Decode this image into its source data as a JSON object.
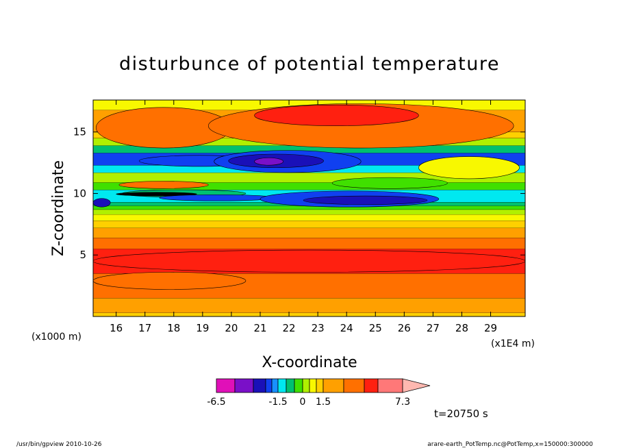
{
  "chart_data": {
    "type": "heatmap",
    "title": "disturbunce of potential temperature",
    "xlabel": "X-coordinate",
    "ylabel": "Z-coordinate",
    "xunit_left": "(x1000 m)",
    "xunit_right": "(x1E4 m)",
    "xlim": [
      15.2,
      30.2
    ],
    "ylim": [
      0,
      17.6
    ],
    "xticks": [
      "16",
      "17",
      "18",
      "19",
      "20",
      "21",
      "22",
      "23",
      "24",
      "25",
      "26",
      "27",
      "28",
      "29"
    ],
    "xtick_values": [
      16,
      17,
      18,
      19,
      20,
      21,
      22,
      23,
      24,
      25,
      26,
      27,
      28,
      29
    ],
    "yticks": [
      "5",
      "10",
      "15"
    ],
    "ytick_values": [
      5,
      10,
      15
    ],
    "legend_labels": [
      "-6.5",
      "-1.5",
      "0",
      "1.5",
      "7.3"
    ],
    "colorbar": [
      {
        "lo": -6.5,
        "hi": -5.0,
        "color": "#e010b8"
      },
      {
        "lo": -5.0,
        "hi": -3.5,
        "color": "#7a10c8"
      },
      {
        "lo": -3.5,
        "hi": -2.5,
        "color": "#1a10b8"
      },
      {
        "lo": -2.5,
        "hi": -2.0,
        "color": "#1040f0"
      },
      {
        "lo": -2.0,
        "hi": -1.5,
        "color": "#1890ff"
      },
      {
        "lo": -1.5,
        "hi": -1.0,
        "color": "#00e8f0"
      },
      {
        "lo": -1.0,
        "hi": -0.5,
        "color": "#00c070"
      },
      {
        "lo": -0.5,
        "hi": 0.0,
        "color": "#40e000"
      },
      {
        "lo": 0.0,
        "hi": 0.5,
        "color": "#b0f000"
      },
      {
        "lo": 0.5,
        "hi": 1.0,
        "color": "#f8f800"
      },
      {
        "lo": 1.0,
        "hi": 1.5,
        "color": "#ffd000"
      },
      {
        "lo": 1.5,
        "hi": 3.0,
        "color": "#ffa000"
      },
      {
        "lo": 3.0,
        "hi": 4.5,
        "color": "#ff7000"
      },
      {
        "lo": 4.5,
        "hi": 5.5,
        "color": "#ff2010"
      },
      {
        "lo": 5.5,
        "hi": 7.3,
        "color": "#ff7878"
      },
      {
        "lo": 7.3,
        "hi": null,
        "color": "#ffb8b0"
      }
    ],
    "bands": [
      {
        "z": [
          0.0,
          0.3
        ],
        "color": "#ffd000"
      },
      {
        "z": [
          0.3,
          1.5
        ],
        "color": "#ffa000"
      },
      {
        "z": [
          1.5,
          3.5
        ],
        "color": "#ff7000"
      },
      {
        "z": [
          3.5,
          5.5
        ],
        "color": "#ff2010"
      },
      {
        "z": [
          5.5,
          6.4
        ],
        "color": "#ff7000"
      },
      {
        "z": [
          6.4,
          7.2
        ],
        "color": "#ffa000"
      },
      {
        "z": [
          7.2,
          7.8
        ],
        "color": "#ffd000"
      },
      {
        "z": [
          7.8,
          8.3
        ],
        "color": "#f8f800"
      },
      {
        "z": [
          8.3,
          8.7
        ],
        "color": "#b0f000"
      },
      {
        "z": [
          8.7,
          9.0
        ],
        "color": "#40e000"
      },
      {
        "z": [
          9.0,
          9.3
        ],
        "color": "#00c070"
      },
      {
        "z": [
          9.3,
          10.3
        ],
        "color": "#00e8f0"
      },
      {
        "z": [
          10.3,
          10.9
        ],
        "color": "#40e000"
      },
      {
        "z": [
          10.9,
          11.7
        ],
        "color": "#b0f000"
      },
      {
        "z": [
          11.7,
          12.3
        ],
        "color": "#00e8f0"
      },
      {
        "z": [
          12.3,
          13.3
        ],
        "color": "#1040f0"
      },
      {
        "z": [
          13.3,
          13.9
        ],
        "color": "#00c070"
      },
      {
        "z": [
          13.9,
          14.5
        ],
        "color": "#b0f000"
      },
      {
        "z": [
          14.5,
          15.0
        ],
        "color": "#ffd000"
      },
      {
        "z": [
          15.0,
          16.8
        ],
        "color": "#ffa000"
      },
      {
        "z": [
          16.8,
          17.6
        ],
        "color": "#f8f800"
      }
    ],
    "features": [
      {
        "x": [
          15.2,
          30.2
        ],
        "z": [
          3.6,
          5.4
        ],
        "color": "#ff2010"
      },
      {
        "x": [
          15.2,
          20.5
        ],
        "z": [
          2.2,
          3.6
        ],
        "color": "#ff7000"
      },
      {
        "x": [
          15.3,
          20.0
        ],
        "z": [
          13.7,
          17.0
        ],
        "color": "#ff7000"
      },
      {
        "x": [
          19.2,
          29.8
        ],
        "z": [
          13.7,
          17.3
        ],
        "color": "#ff7000"
      },
      {
        "x": [
          20.8,
          26.5
        ],
        "z": [
          15.5,
          17.2
        ],
        "color": "#ff2010"
      },
      {
        "x": [
          16.2,
          20.5
        ],
        "z": [
          9.7,
          10.3
        ],
        "color": "#00c070"
      },
      {
        "x": [
          16.0,
          18.8
        ],
        "z": [
          9.8,
          10.1
        ],
        "color": "#000000"
      },
      {
        "x": [
          16.1,
          19.2
        ],
        "z": [
          10.4,
          11.0
        ],
        "color": "#ff7000"
      },
      {
        "x": [
          17.5,
          21.5
        ],
        "z": [
          9.4,
          9.9
        ],
        "color": "#1040f0"
      },
      {
        "x": [
          21.0,
          27.2
        ],
        "z": [
          8.9,
          10.2
        ],
        "color": "#1040f0"
      },
      {
        "x": [
          22.5,
          26.8
        ],
        "z": [
          9.1,
          9.8
        ],
        "color": "#1a10b8"
      },
      {
        "x": [
          15.2,
          15.8
        ],
        "z": [
          8.9,
          9.6
        ],
        "color": "#1a10b8"
      },
      {
        "x": [
          16.8,
          21.0
        ],
        "z": [
          12.2,
          13.1
        ],
        "color": "#1040f0"
      },
      {
        "x": [
          19.4,
          24.5
        ],
        "z": [
          11.7,
          13.5
        ],
        "color": "#1040f0"
      },
      {
        "x": [
          19.9,
          23.2
        ],
        "z": [
          12.1,
          13.2
        ],
        "color": "#1a10b8"
      },
      {
        "x": [
          20.8,
          21.8
        ],
        "z": [
          12.3,
          12.9
        ],
        "color": "#7a10c8"
      },
      {
        "x": [
          26.5,
          30.0
        ],
        "z": [
          11.2,
          13.0
        ],
        "color": "#f8f800"
      },
      {
        "x": [
          23.5,
          27.5
        ],
        "z": [
          10.4,
          11.3
        ],
        "color": "#40e000"
      }
    ],
    "time_label": "t=20750 s"
  },
  "footer": {
    "left": "/usr/bin/gpview   2010-10-26",
    "right": "arare-earth_PotTemp.nc@PotTemp,x=150000:300000"
  }
}
